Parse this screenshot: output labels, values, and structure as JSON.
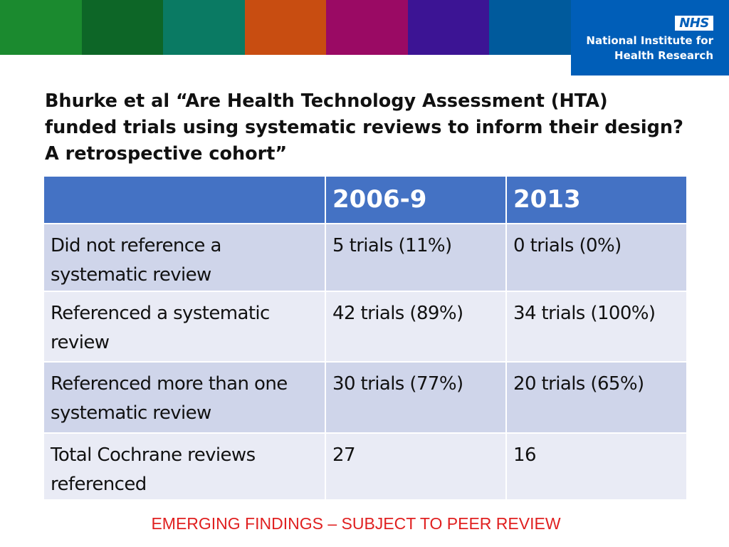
{
  "header": {
    "color_band": [
      "#1b8a2f",
      "#0d6627",
      "#0a7a63",
      "#c84d11",
      "#9a0a64",
      "#3c1494",
      "#005a9c"
    ],
    "logo": {
      "nhs_text": "NHS",
      "line1": "National Institute for",
      "line2": "Health Research",
      "background": "#005eb8"
    }
  },
  "slide": {
    "title": "Bhurke et al “Are Health Technology Assessment (HTA) funded trials using systematic reviews to inform their design? A retrospective cohort”"
  },
  "table": {
    "columns": [
      "",
      "2006-9",
      "2013"
    ],
    "rows": [
      [
        "Did not reference a systematic review",
        "5 trials (11%)",
        "0 trials (0%)"
      ],
      [
        "Referenced a systematic review",
        "42 trials (89%)",
        "34 trials (100%)"
      ],
      [
        "Referenced more than one systematic review",
        "30 trials (77%)",
        "20 trials (65%)"
      ],
      [
        "Total Cochrane reviews referenced",
        "27",
        "16"
      ]
    ],
    "header_color": "#4472c4",
    "row_colors": [
      "#cfd5ea",
      "#e9ebf5"
    ]
  },
  "footer": {
    "note": "EMERGING FINDINGS – SUBJECT TO PEER REVIEW",
    "color": "#e02020"
  }
}
